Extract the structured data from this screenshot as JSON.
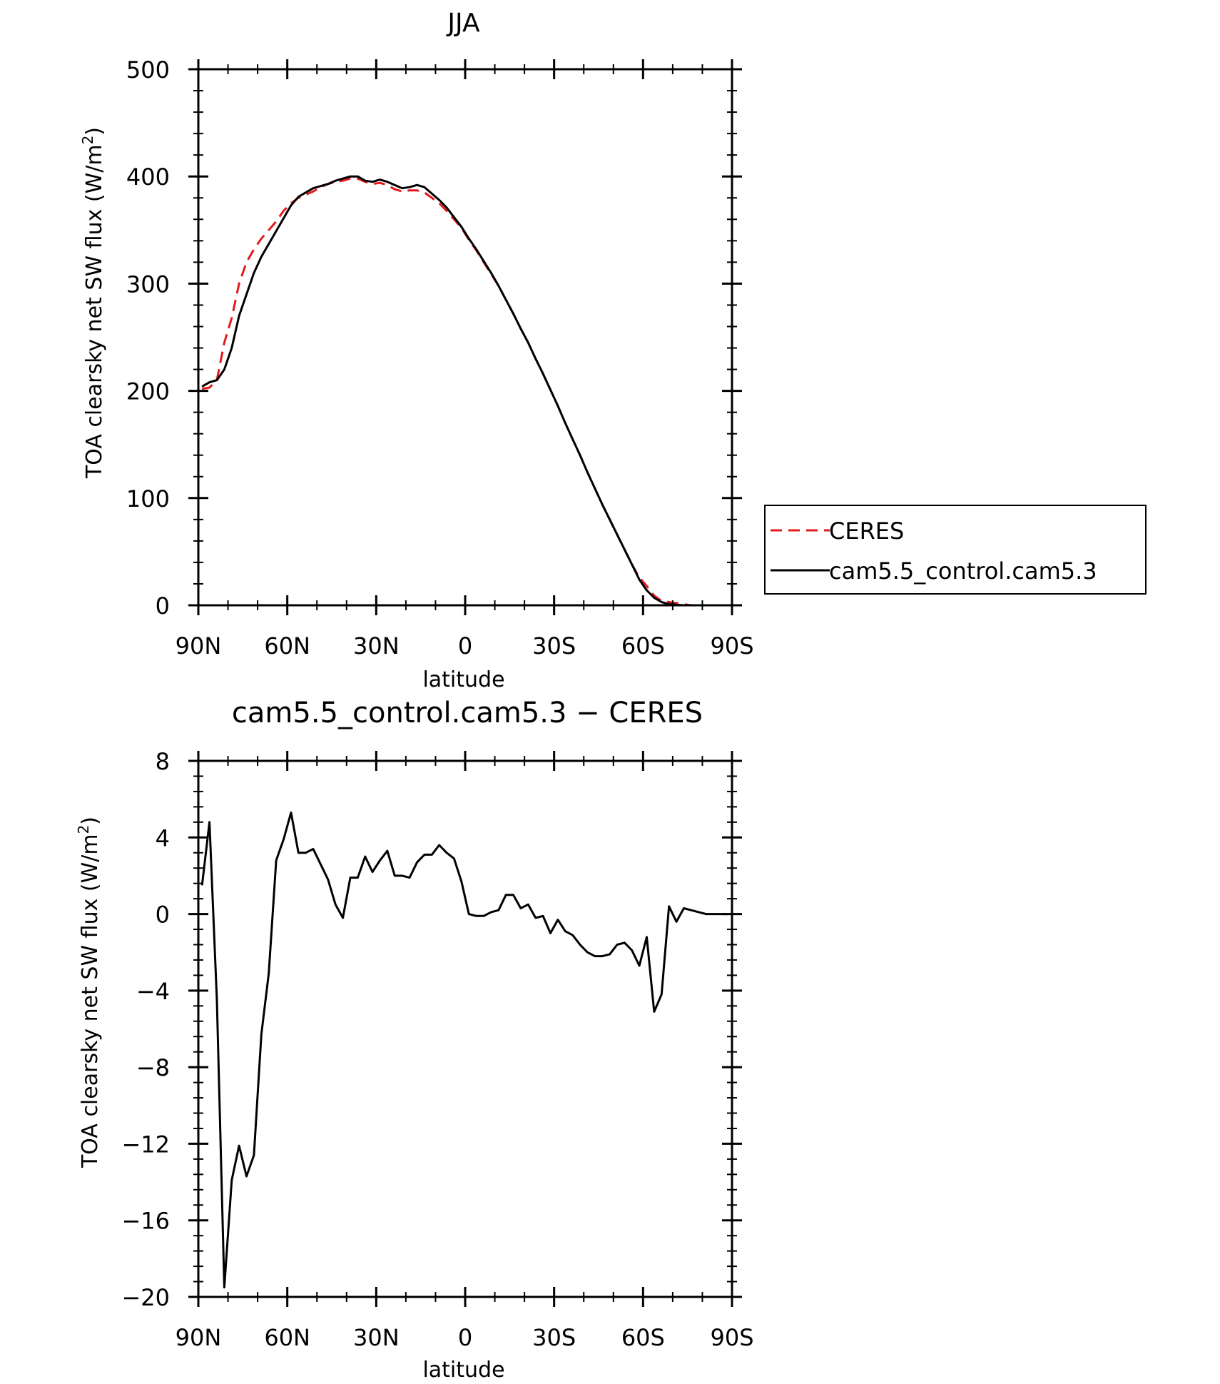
{
  "chart_data": [
    {
      "type": "line",
      "title": "JJA",
      "xlabel": "latitude",
      "ylabel": "TOA clearsky net SW flux (W/m²)",
      "ylabel_main": "TOA clearsky net SW flux (W/m",
      "ylabel_sup": "2",
      "ylabel_close": ")",
      "xlim": [
        90,
        -90
      ],
      "ylim": [
        0,
        500
      ],
      "x_ticks": [
        90,
        60,
        30,
        0,
        -30,
        -60,
        -90
      ],
      "x_tick_labels": [
        "90N",
        "60N",
        "30N",
        "0",
        "30S",
        "60S",
        "90S"
      ],
      "y_ticks": [
        0,
        100,
        200,
        300,
        400,
        500
      ],
      "y_tick_labels": [
        "0",
        "100",
        "200",
        "300",
        "400",
        "500"
      ],
      "legend_position": "right",
      "series": [
        {
          "name": "CERES",
          "color": "#e31a1c",
          "dashed": true,
          "x": [
            88.75,
            86.25,
            83.75,
            81.25,
            78.75,
            76.25,
            73.75,
            71.25,
            68.75,
            66.25,
            63.75,
            61.25,
            58.75,
            56.25,
            53.75,
            51.25,
            48.75,
            46.25,
            43.75,
            41.25,
            38.75,
            36.25,
            33.75,
            31.25,
            28.75,
            26.25,
            23.75,
            21.25,
            18.75,
            16.25,
            13.75,
            11.25,
            8.75,
            6.25,
            3.75,
            1.25,
            -1.25,
            -3.75,
            -6.25,
            -8.75,
            -11.25,
            -13.75,
            -16.25,
            -18.75,
            -21.25,
            -23.75,
            -26.25,
            -28.75,
            -31.25,
            -33.75,
            -36.25,
            -38.75,
            -41.25,
            -43.75,
            -46.25,
            -48.75,
            -51.25,
            -53.75,
            -56.25,
            -58.75,
            -61.25,
            -63.75,
            -66.25,
            -68.75,
            -71.25,
            -73.75,
            -76.25,
            -78.75,
            -81.25,
            -83.75,
            -86.25,
            -88.75
          ],
          "y": [
            202,
            203,
            210,
            245,
            268,
            300,
            320,
            332,
            342,
            350,
            358,
            368,
            375,
            380,
            383,
            386,
            390,
            393,
            395,
            396,
            398,
            398,
            395,
            393,
            394,
            392,
            388,
            386,
            387,
            387,
            385,
            380,
            375,
            368,
            360,
            352,
            341,
            331,
            320,
            309,
            298,
            285,
            272,
            258,
            245,
            230,
            216,
            201,
            186,
            170,
            155,
            140,
            124,
            109,
            94,
            80,
            66,
            52,
            38,
            26,
            18,
            9,
            4,
            3,
            2,
            1,
            0,
            0,
            0,
            0,
            0,
            0
          ]
        },
        {
          "name": "cam5.5_control.cam5.3",
          "color": "#000000",
          "dashed": false,
          "x": [
            88.75,
            86.25,
            83.75,
            81.25,
            78.75,
            76.25,
            73.75,
            71.25,
            68.75,
            66.25,
            63.75,
            61.25,
            58.75,
            56.25,
            53.75,
            51.25,
            48.75,
            46.25,
            43.75,
            41.25,
            38.75,
            36.25,
            33.75,
            31.25,
            28.75,
            26.25,
            23.75,
            21.25,
            18.75,
            16.25,
            13.75,
            11.25,
            8.75,
            6.25,
            3.75,
            1.25,
            -1.25,
            -3.75,
            -6.25,
            -8.75,
            -11.25,
            -13.75,
            -16.25,
            -18.75,
            -21.25,
            -23.75,
            -26.25,
            -28.75,
            -31.25,
            -33.75,
            -36.25,
            -38.75,
            -41.25,
            -43.75,
            -46.25,
            -48.75,
            -51.25,
            -53.75,
            -56.25,
            -58.75,
            -61.25,
            -63.75,
            -66.25,
            -68.75,
            -71.25,
            -73.75,
            -76.25,
            -78.75,
            -81.25,
            -83.75,
            -86.25,
            -88.75
          ],
          "y": [
            204,
            208,
            210,
            220,
            240,
            270,
            290,
            310,
            325,
            337,
            349,
            361,
            373,
            381,
            385,
            389,
            391,
            393,
            396,
            398,
            400,
            400,
            396,
            395,
            397,
            395,
            392,
            389,
            390,
            392,
            390,
            384,
            378,
            371,
            362,
            353,
            342,
            332,
            321,
            310,
            298,
            285,
            272,
            258,
            245,
            230,
            216,
            201,
            186,
            170,
            155,
            140,
            124,
            109,
            94,
            80,
            66,
            52,
            38,
            24,
            14,
            7,
            3,
            1,
            0.5,
            0,
            0,
            0,
            0,
            0,
            0,
            0
          ]
        }
      ]
    },
    {
      "type": "line",
      "title": "cam5.5_control.cam5.3 − CERES",
      "xlabel": "latitude",
      "ylabel": "TOA clearsky net SW flux (W/m²)",
      "ylabel_main": "TOA clearsky net SW flux (W/m",
      "ylabel_sup": "2",
      "ylabel_close": ")",
      "xlim": [
        90,
        -90
      ],
      "ylim": [
        -20,
        8
      ],
      "x_ticks": [
        90,
        60,
        30,
        0,
        -30,
        -60,
        -90
      ],
      "x_tick_labels": [
        "90N",
        "60N",
        "30N",
        "0",
        "30S",
        "60S",
        "90S"
      ],
      "y_ticks": [
        -20,
        -16,
        -12,
        -8,
        -4,
        0,
        4,
        8
      ],
      "y_tick_labels": [
        "−20",
        "−16",
        "−12",
        "−8",
        "−4",
        "0",
        "4",
        "8"
      ],
      "series": [
        {
          "color": "#000000",
          "dashed": false,
          "x": [
            88.75,
            86.25,
            83.75,
            81.25,
            78.75,
            76.25,
            73.75,
            71.25,
            68.75,
            66.25,
            63.75,
            61.25,
            58.75,
            56.25,
            53.75,
            51.25,
            48.75,
            46.25,
            43.75,
            41.25,
            38.75,
            36.25,
            33.75,
            31.25,
            28.75,
            26.25,
            23.75,
            21.25,
            18.75,
            16.25,
            13.75,
            11.25,
            8.75,
            6.25,
            3.75,
            1.25,
            -1.25,
            -3.75,
            -6.25,
            -8.75,
            -11.25,
            -13.75,
            -16.25,
            -18.75,
            -21.25,
            -23.75,
            -26.25,
            -28.75,
            -31.25,
            -33.75,
            -36.25,
            -38.75,
            -41.25,
            -43.75,
            -46.25,
            -48.75,
            -51.25,
            -53.75,
            -56.25,
            -58.75,
            -61.25,
            -63.75,
            -66.25,
            -68.75,
            -71.25,
            -73.75,
            -76.25,
            -78.75,
            -81.25,
            -83.75,
            -86.25,
            -88.75
          ],
          "y": [
            1.5,
            4.8,
            -4.5,
            -19.5,
            -13.9,
            -12.1,
            -13.7,
            -12.6,
            -6.3,
            -3.1,
            2.8,
            3.9,
            5.3,
            3.2,
            3.2,
            3.4,
            2.6,
            1.8,
            0.5,
            -0.2,
            1.9,
            1.9,
            3.0,
            2.2,
            2.8,
            3.3,
            2.0,
            2.0,
            1.9,
            2.7,
            3.1,
            3.1,
            3.6,
            3.2,
            2.9,
            1.7,
            0.0,
            -0.1,
            -0.1,
            0.1,
            0.2,
            1.0,
            1.0,
            0.3,
            0.5,
            -0.2,
            -0.1,
            -1.0,
            -0.3,
            -0.9,
            -1.1,
            -1.6,
            -2.0,
            -2.2,
            -2.2,
            -2.1,
            -1.6,
            -1.5,
            -1.9,
            -2.7,
            -1.2,
            -5.1,
            -4.2,
            0.4,
            -0.4,
            0.3,
            0.2,
            0.1,
            0.0,
            0.0,
            0.0,
            0.0
          ]
        }
      ]
    }
  ]
}
